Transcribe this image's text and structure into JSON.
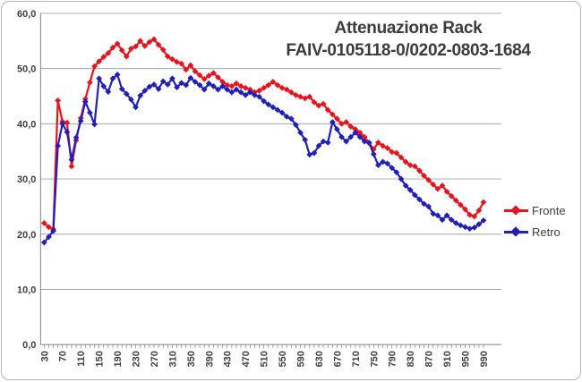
{
  "chart": {
    "title_line1": "Attenuazione Rack",
    "title_line2": "FAIV-0105118-0/0202-0803-1684",
    "legend_fronte": "Fronte",
    "legend_retro": "Retro",
    "colors": {
      "fronte": "#e8131d",
      "retro": "#2020b8",
      "grid": "#a4a4a4",
      "axis": "#808080",
      "labels": "#3f3f3f"
    }
  },
  "chart_data": {
    "type": "line",
    "title": "Attenuazione Rack FAIV-0105118-0/0202-0803-1684",
    "xlabel": "",
    "ylabel": "",
    "ylim": [
      0,
      60
    ],
    "grid": true,
    "legend_position": "right",
    "ytick_labels": [
      "0,0",
      "10,0",
      "20,0",
      "30,0",
      "40,0",
      "50,0",
      "60,0"
    ],
    "xtick_labels": [
      "30",
      "70",
      "110",
      "150",
      "190",
      "230",
      "270",
      "310",
      "350",
      "390",
      "430",
      "470",
      "510",
      "550",
      "590",
      "630",
      "670",
      "710",
      "750",
      "790",
      "830",
      "870",
      "910",
      "950",
      "990"
    ],
    "x": [
      30,
      40,
      50,
      60,
      70,
      80,
      90,
      100,
      110,
      120,
      130,
      140,
      150,
      160,
      170,
      180,
      190,
      200,
      210,
      220,
      230,
      240,
      250,
      260,
      270,
      280,
      290,
      300,
      310,
      320,
      330,
      340,
      350,
      360,
      370,
      380,
      390,
      400,
      410,
      420,
      430,
      440,
      450,
      460,
      470,
      480,
      490,
      500,
      510,
      520,
      530,
      540,
      550,
      560,
      570,
      580,
      590,
      600,
      610,
      620,
      630,
      640,
      650,
      660,
      670,
      680,
      690,
      700,
      710,
      720,
      730,
      740,
      750,
      760,
      770,
      780,
      790,
      800,
      810,
      820,
      830,
      840,
      850,
      860,
      870,
      880,
      890,
      900,
      910,
      920,
      930,
      940,
      950,
      960,
      970,
      980,
      990
    ],
    "series": [
      {
        "name": "Fronte",
        "color": "#e8131d",
        "values": [
          22.0,
          21.3,
          20.9,
          44.2,
          40.4,
          40.2,
          32.3,
          37.0,
          41.0,
          44.5,
          47.5,
          50.4,
          51.3,
          52.1,
          52.8,
          53.8,
          54.5,
          53.3,
          52.2,
          53.6,
          54.0,
          55.0,
          54.1,
          54.8,
          55.3,
          54.3,
          53.4,
          52.2,
          51.7,
          51.2,
          50.9,
          49.8,
          50.6,
          49.5,
          48.8,
          48.1,
          48.7,
          49.2,
          48.4,
          47.6,
          47.0,
          46.8,
          47.3,
          46.8,
          46.5,
          46.2,
          45.7,
          46.0,
          46.5,
          47.0,
          47.6,
          47.0,
          46.5,
          46.2,
          45.7,
          45.2,
          44.9,
          44.6,
          44.9,
          43.9,
          43.3,
          43.6,
          42.5,
          41.7,
          40.9,
          40.0,
          40.3,
          39.5,
          39.0,
          38.4,
          37.6,
          36.5,
          35.4,
          36.6,
          36.0,
          35.6,
          34.9,
          34.7,
          33.9,
          33.1,
          32.5,
          32.3,
          31.5,
          30.6,
          29.8,
          29.0,
          28.2,
          28.8,
          27.7,
          26.9,
          26.1,
          25.3,
          24.5,
          23.5,
          23.2,
          24.3,
          25.8
        ]
      },
      {
        "name": "Retro",
        "color": "#2020b8",
        "values": [
          18.5,
          19.5,
          20.6,
          36.0,
          40.0,
          38.5,
          33.5,
          37.5,
          40.5,
          44.0,
          42.0,
          39.9,
          48.2,
          46.8,
          45.8,
          48.2,
          48.9,
          46.3,
          45.4,
          44.4,
          43.0,
          45.1,
          46.0,
          46.7,
          47.1,
          46.3,
          47.7,
          47.1,
          48.2,
          46.6,
          47.4,
          47.0,
          48.3,
          47.6,
          47.0,
          46.2,
          47.3,
          46.8,
          46.2,
          46.8,
          46.2,
          45.7,
          46.2,
          45.7,
          45.2,
          45.7,
          45.2,
          44.9,
          44.1,
          43.5,
          43.0,
          42.5,
          42.0,
          41.3,
          40.9,
          39.8,
          38.4,
          37.1,
          34.4,
          34.7,
          36.0,
          36.8,
          36.6,
          40.3,
          39.0,
          37.6,
          36.8,
          37.6,
          38.4,
          37.6,
          36.8,
          36.6,
          34.5,
          32.5,
          33.1,
          32.8,
          32.0,
          31.2,
          30.0,
          28.8,
          28.0,
          27.1,
          26.3,
          25.5,
          25.0,
          23.7,
          23.4,
          22.6,
          23.4,
          22.6,
          22.0,
          21.6,
          21.3,
          21.0,
          21.2,
          21.8,
          22.5
        ]
      }
    ]
  }
}
